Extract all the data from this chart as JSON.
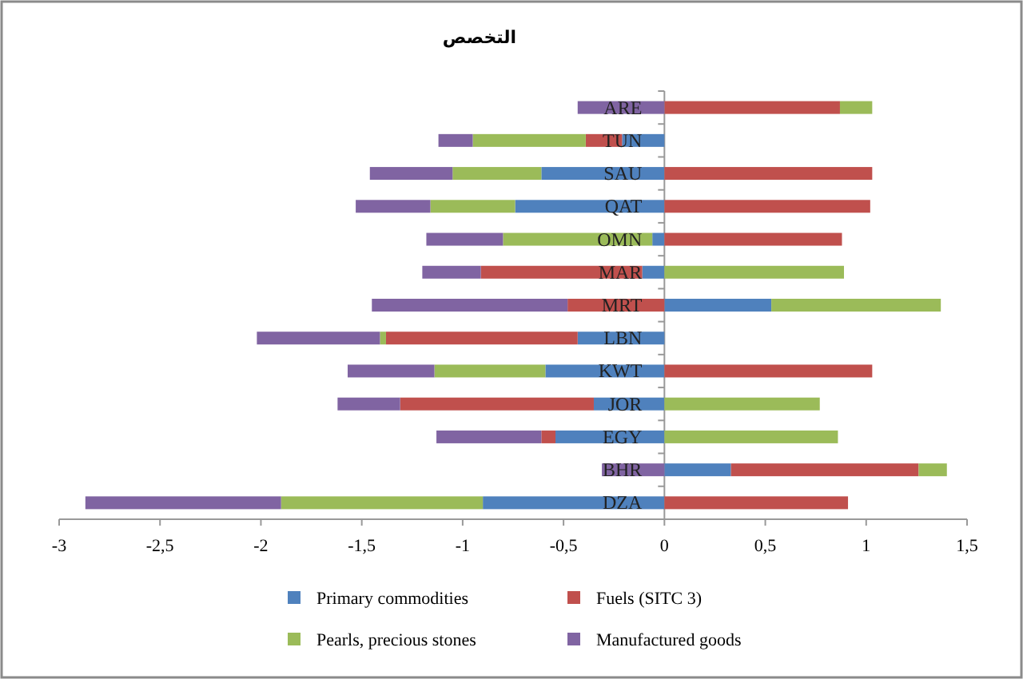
{
  "chart_data": {
    "type": "bar",
    "orientation": "horizontal",
    "stacked": true,
    "title": "التخصص",
    "categories": [
      "ARE",
      "TUN",
      "SAU",
      "QAT",
      "OMN",
      "MAR",
      "MRT",
      "LBN",
      "KWT",
      "JOR",
      "EGY",
      "BHR",
      "DZA"
    ],
    "series": [
      {
        "name": "Primary commodities",
        "color": "#4f81bd",
        "values": [
          null,
          -0.21,
          -0.61,
          -0.74,
          -0.06,
          -0.11,
          0.53,
          -0.43,
          -0.59,
          -0.35,
          -0.54,
          0.33,
          -0.9
        ]
      },
      {
        "name": "Fuels (SITC 3)",
        "color": "#c0504d",
        "values": [
          0.87,
          -0.18,
          1.03,
          1.02,
          0.88,
          -0.8,
          -0.48,
          -0.95,
          1.03,
          -0.96,
          -0.07,
          0.93,
          0.91
        ]
      },
      {
        "name": "Pearls, precious stones",
        "color": "#9bbb59",
        "values": [
          0.16,
          -0.56,
          -0.44,
          -0.42,
          -0.74,
          0.89,
          0.84,
          -0.03,
          -0.55,
          0.77,
          0.86,
          0.14,
          -1.0
        ]
      },
      {
        "name": "Manufactured goods",
        "color": "#8064a2",
        "values": [
          -0.43,
          -0.17,
          -0.41,
          -0.37,
          -0.38,
          -0.29,
          -0.97,
          -0.61,
          -0.43,
          -0.31,
          -0.52,
          -0.31,
          -0.97
        ]
      }
    ],
    "xlim": [
      -3,
      1.5
    ],
    "xticks": [
      -3,
      {
        "value": -2.5,
        "label": "-2,5"
      },
      -2,
      {
        "value": -1.5,
        "label": "-1,5"
      },
      -1,
      {
        "value": -0.5,
        "label": "-0,5"
      },
      0,
      {
        "value": 0.5,
        "label": "0,5"
      },
      1,
      {
        "value": 1.5,
        "label": "1,5"
      }
    ],
    "grid": false,
    "legend": "bottom"
  }
}
